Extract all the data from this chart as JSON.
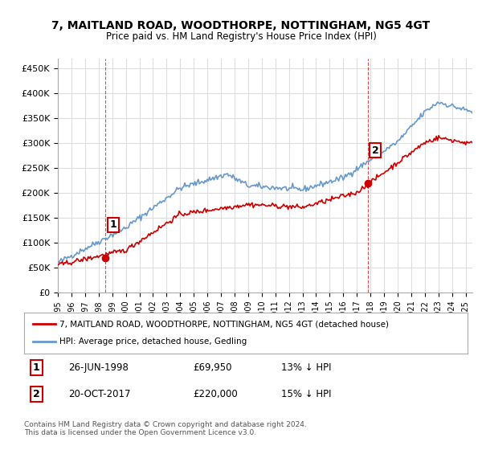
{
  "title": "7, MAITLAND ROAD, WOODTHORPE, NOTTINGHAM, NG5 4GT",
  "subtitle": "Price paid vs. HM Land Registry's House Price Index (HPI)",
  "ylabel_ticks": [
    "£0",
    "£50K",
    "£100K",
    "£150K",
    "£200K",
    "£250K",
    "£300K",
    "£350K",
    "£400K",
    "£450K"
  ],
  "ytick_values": [
    0,
    50000,
    100000,
    150000,
    200000,
    250000,
    300000,
    350000,
    400000,
    450000
  ],
  "ylim": [
    0,
    470000
  ],
  "xlim_start": 1995.0,
  "xlim_end": 2025.5,
  "legend_line1": "7, MAITLAND ROAD, WOODTHORPE, NOTTINGHAM, NG5 4GT (detached house)",
  "legend_line2": "HPI: Average price, detached house, Gedling",
  "sale1_label": "1",
  "sale1_date": "26-JUN-1998",
  "sale1_price": "£69,950",
  "sale1_hpi": "13% ↓ HPI",
  "sale2_label": "2",
  "sale2_date": "20-OCT-2017",
  "sale2_price": "£220,000",
  "sale2_hpi": "15% ↓ HPI",
  "footnote": "Contains HM Land Registry data © Crown copyright and database right 2024.\nThis data is licensed under the Open Government Licence v3.0.",
  "sale1_year": 1998.5,
  "sale1_value": 69950,
  "sale2_year": 2017.8,
  "sale2_value": 220000,
  "line_color_property": "#cc0000",
  "line_color_hpi": "#6699cc",
  "background_color": "#ffffff",
  "grid_color": "#dddddd",
  "annotation_box_color": "#cc0000"
}
